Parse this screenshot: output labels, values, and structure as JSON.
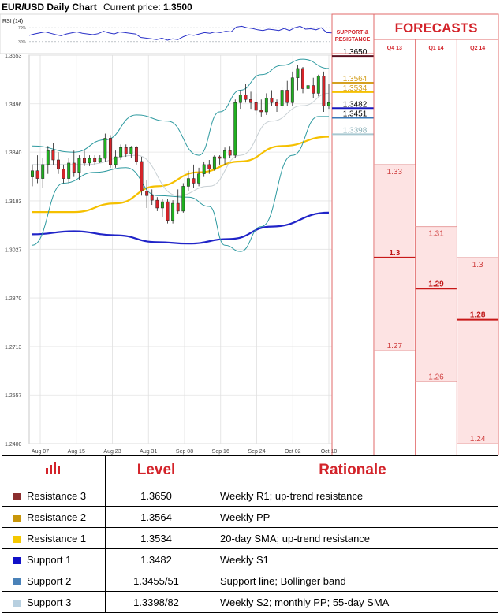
{
  "header": {
    "title": "EUR/USD Daily Chart",
    "price_label": "Current price:",
    "price_value": "1.3500"
  },
  "rsi_label": "RSI (14)",
  "rsi_ticks": [
    "70%",
    "30%"
  ],
  "chart_data": [
    {
      "type": "candlestick",
      "title": "EUR/USD Daily Chart",
      "y_ticks": [
        1.3653,
        1.3496,
        1.334,
        1.3183,
        1.3027,
        1.287,
        1.2713,
        1.2557,
        1.24
      ],
      "ylim": [
        1.24,
        1.3653
      ],
      "x_ticks": [
        "Aug 07",
        "Aug 15",
        "Aug 23",
        "Aug 31",
        "Sep 08",
        "Sep 16",
        "Sep 24",
        "Oct 02",
        "Oct 10"
      ],
      "candles": [
        {
          "o": 1.326,
          "h": 1.33,
          "l": 1.323,
          "c": 1.328
        },
        {
          "o": 1.328,
          "h": 1.333,
          "l": 1.324,
          "c": 1.3255
        },
        {
          "o": 1.3255,
          "h": 1.332,
          "l": 1.3225,
          "c": 1.33
        },
        {
          "o": 1.33,
          "h": 1.336,
          "l": 1.327,
          "c": 1.3345
        },
        {
          "o": 1.3345,
          "h": 1.337,
          "l": 1.33,
          "c": 1.3315
        },
        {
          "o": 1.3315,
          "h": 1.334,
          "l": 1.327,
          "c": 1.3285
        },
        {
          "o": 1.3285,
          "h": 1.33,
          "l": 1.324,
          "c": 1.3255
        },
        {
          "o": 1.3255,
          "h": 1.332,
          "l": 1.324,
          "c": 1.3305
        },
        {
          "o": 1.3305,
          "h": 1.3345,
          "l": 1.326,
          "c": 1.3275
        },
        {
          "o": 1.3275,
          "h": 1.333,
          "l": 1.325,
          "c": 1.332
        },
        {
          "o": 1.332,
          "h": 1.3345,
          "l": 1.3295,
          "c": 1.3305
        },
        {
          "o": 1.3305,
          "h": 1.333,
          "l": 1.3295,
          "c": 1.332
        },
        {
          "o": 1.332,
          "h": 1.333,
          "l": 1.33,
          "c": 1.331
        },
        {
          "o": 1.331,
          "h": 1.333,
          "l": 1.3305,
          "c": 1.332
        },
        {
          "o": 1.332,
          "h": 1.34,
          "l": 1.331,
          "c": 1.3385
        },
        {
          "o": 1.3385,
          "h": 1.3395,
          "l": 1.329,
          "c": 1.33
        },
        {
          "o": 1.33,
          "h": 1.3345,
          "l": 1.329,
          "c": 1.3325
        },
        {
          "o": 1.3325,
          "h": 1.3365,
          "l": 1.3315,
          "c": 1.3355
        },
        {
          "o": 1.3355,
          "h": 1.3365,
          "l": 1.3325,
          "c": 1.3335
        },
        {
          "o": 1.3335,
          "h": 1.336,
          "l": 1.332,
          "c": 1.3355
        },
        {
          "o": 1.3355,
          "h": 1.336,
          "l": 1.33,
          "c": 1.331
        },
        {
          "o": 1.331,
          "h": 1.3325,
          "l": 1.32,
          "c": 1.3215
        },
        {
          "o": 1.3215,
          "h": 1.325,
          "l": 1.316,
          "c": 1.32
        },
        {
          "o": 1.32,
          "h": 1.322,
          "l": 1.317,
          "c": 1.3185
        },
        {
          "o": 1.3185,
          "h": 1.3195,
          "l": 1.315,
          "c": 1.316
        },
        {
          "o": 1.316,
          "h": 1.319,
          "l": 1.313,
          "c": 1.318
        },
        {
          "o": 1.318,
          "h": 1.319,
          "l": 1.311,
          "c": 1.312
        },
        {
          "o": 1.312,
          "h": 1.3185,
          "l": 1.311,
          "c": 1.3175
        },
        {
          "o": 1.3175,
          "h": 1.322,
          "l": 1.314,
          "c": 1.315
        },
        {
          "o": 1.315,
          "h": 1.324,
          "l": 1.3145,
          "c": 1.323
        },
        {
          "o": 1.323,
          "h": 1.328,
          "l": 1.3215,
          "c": 1.3255
        },
        {
          "o": 1.3255,
          "h": 1.33,
          "l": 1.3225,
          "c": 1.324
        },
        {
          "o": 1.324,
          "h": 1.329,
          "l": 1.323,
          "c": 1.327
        },
        {
          "o": 1.327,
          "h": 1.331,
          "l": 1.326,
          "c": 1.33
        },
        {
          "o": 1.33,
          "h": 1.3315,
          "l": 1.327,
          "c": 1.3285
        },
        {
          "o": 1.3285,
          "h": 1.333,
          "l": 1.328,
          "c": 1.3325
        },
        {
          "o": 1.3325,
          "h": 1.333,
          "l": 1.33,
          "c": 1.332
        },
        {
          "o": 1.332,
          "h": 1.3355,
          "l": 1.33,
          "c": 1.3345
        },
        {
          "o": 1.3345,
          "h": 1.336,
          "l": 1.332,
          "c": 1.333
        },
        {
          "o": 1.333,
          "h": 1.351,
          "l": 1.332,
          "c": 1.35
        },
        {
          "o": 1.35,
          "h": 1.354,
          "l": 1.348,
          "c": 1.3525
        },
        {
          "o": 1.3525,
          "h": 1.356,
          "l": 1.35,
          "c": 1.351
        },
        {
          "o": 1.351,
          "h": 1.3535,
          "l": 1.348,
          "c": 1.35
        },
        {
          "o": 1.35,
          "h": 1.353,
          "l": 1.346,
          "c": 1.3475
        },
        {
          "o": 1.3475,
          "h": 1.351,
          "l": 1.3455,
          "c": 1.347
        },
        {
          "o": 1.347,
          "h": 1.353,
          "l": 1.346,
          "c": 1.3515
        },
        {
          "o": 1.3515,
          "h": 1.354,
          "l": 1.349,
          "c": 1.35
        },
        {
          "o": 1.35,
          "h": 1.351,
          "l": 1.347,
          "c": 1.349
        },
        {
          "o": 1.349,
          "h": 1.355,
          "l": 1.348,
          "c": 1.354
        },
        {
          "o": 1.354,
          "h": 1.357,
          "l": 1.349,
          "c": 1.35
        },
        {
          "o": 1.35,
          "h": 1.36,
          "l": 1.349,
          "c": 1.358
        },
        {
          "o": 1.358,
          "h": 1.362,
          "l": 1.354,
          "c": 1.361
        },
        {
          "o": 1.361,
          "h": 1.3615,
          "l": 1.353,
          "c": 1.3545
        },
        {
          "o": 1.3545,
          "h": 1.357,
          "l": 1.352,
          "c": 1.3555
        },
        {
          "o": 1.3555,
          "h": 1.358,
          "l": 1.3515,
          "c": 1.353
        },
        {
          "o": 1.353,
          "h": 1.359,
          "l": 1.352,
          "c": 1.3585
        },
        {
          "o": 1.3585,
          "h": 1.36,
          "l": 1.347,
          "c": 1.349
        },
        {
          "o": 1.349,
          "h": 1.356,
          "l": 1.348,
          "c": 1.35
        }
      ],
      "series": [
        {
          "color": "#f5c000",
          "points": [
            [
              0,
              1.3147
            ],
            [
              8,
              1.3147
            ],
            [
              16,
              1.3175
            ],
            [
              24,
              1.323
            ],
            [
              32,
              1.3275
            ],
            [
              40,
              1.331
            ],
            [
              48,
              1.336
            ],
            [
              57,
              1.339
            ]
          ]
        },
        {
          "color": "#2024c8",
          "points": [
            [
              0,
              1.3075
            ],
            [
              8,
              1.3085
            ],
            [
              16,
              1.3072
            ],
            [
              24,
              1.305
            ],
            [
              30,
              1.3045
            ],
            [
              38,
              1.306
            ],
            [
              46,
              1.31
            ],
            [
              57,
              1.3145
            ]
          ]
        },
        {
          "color": "#2e9aa0",
          "points": [
            [
              0,
              1.304
            ],
            [
              6,
              1.324
            ],
            [
              12,
              1.3275
            ],
            [
              18,
              1.329
            ],
            [
              24,
              1.32
            ],
            [
              30,
              1.3195
            ],
            [
              34,
              1.3165
            ],
            [
              37,
              1.304
            ],
            [
              40,
              1.302
            ],
            [
              44,
              1.31
            ],
            [
              50,
              1.333
            ],
            [
              55,
              1.3455
            ],
            [
              57,
              1.3455
            ]
          ]
        },
        {
          "color": "#2e9aa0",
          "points": [
            [
              0,
              1.336
            ],
            [
              8,
              1.334
            ],
            [
              14,
              1.338
            ],
            [
              20,
              1.346
            ],
            [
              26,
              1.344
            ],
            [
              32,
              1.333
            ],
            [
              36,
              1.347
            ],
            [
              40,
              1.354
            ],
            [
              44,
              1.359
            ],
            [
              48,
              1.362
            ],
            [
              52,
              1.364
            ],
            [
              57,
              1.361
            ]
          ]
        },
        {
          "color": "#c8d0d4",
          "points": [
            [
              0,
              1.33
            ],
            [
              10,
              1.33
            ],
            [
              20,
              1.333
            ],
            [
              28,
              1.32
            ],
            [
              34,
              1.323
            ],
            [
              40,
              1.333
            ],
            [
              46,
              1.344
            ],
            [
              52,
              1.349
            ],
            [
              57,
              1.353
            ]
          ]
        }
      ]
    },
    {
      "type": "line",
      "title": "RSI (14)",
      "ylim": [
        0,
        100
      ],
      "values": [
        48,
        52,
        55,
        58,
        54,
        50,
        47,
        52,
        55,
        58,
        54,
        52,
        50,
        53,
        60,
        55,
        52,
        58,
        56,
        54,
        52,
        42,
        40,
        38,
        36,
        40,
        34,
        38,
        36,
        44,
        50,
        48,
        52,
        56,
        54,
        58,
        56,
        60,
        58,
        72,
        74,
        70,
        68,
        64,
        62,
        66,
        64,
        62,
        68,
        62,
        70,
        74,
        66,
        67,
        64,
        70,
        56,
        55
      ]
    }
  ],
  "levels": [
    {
      "label": "1.3650",
      "color": "#5a1020",
      "text_color": "#000000",
      "value": 1.365
    },
    {
      "label": "1.3564",
      "color": "#d4a020",
      "text_color": "#d4a020",
      "value": 1.3564
    },
    {
      "label": "1.3534",
      "color": "#f5c000",
      "text_color": "#d4a020",
      "value": 1.3534
    },
    {
      "label": "1.3482",
      "color": "#1818c0",
      "text_color": "#000000",
      "value": 1.3482
    },
    {
      "label": "1.3451",
      "color": "#3878b8",
      "text_color": "#000000",
      "value": 1.3451
    },
    {
      "label": "1.3398",
      "color": "#a8c8d0",
      "text_color": "#8ab0b8",
      "value": 1.3398
    }
  ],
  "sr_header": "SUPPORT & RESISTANCE",
  "forecasts": {
    "title": "FORECASTS",
    "columns": [
      {
        "label": "Q4 13",
        "low": 1.27,
        "mid": 1.3,
        "high": 1.33,
        "low_label": "1.27",
        "mid_label": "1.3",
        "high_label": "1.33"
      },
      {
        "label": "Q1 14",
        "low": 1.26,
        "mid": 1.29,
        "high": 1.31,
        "low_label": "1.26",
        "mid_label": "1.29",
        "high_label": "1.31"
      },
      {
        "label": "Q2 14",
        "low": 1.24,
        "mid": 1.28,
        "high": 1.3,
        "low_label": "1.24",
        "mid_label": "1.28",
        "high_label": "1.3"
      }
    ]
  },
  "table": {
    "col_level": "Level",
    "col_rationale": "Rationale",
    "rows": [
      {
        "name": "Resistance 3",
        "level": "1.3650",
        "rationale": "Weekly R1; up-trend resistance",
        "color": "#8b2e2e"
      },
      {
        "name": "Resistance 2",
        "level": "1.3564",
        "rationale": "Weekly PP",
        "color": "#c8960a"
      },
      {
        "name": "Resistance 1",
        "level": "1.3534",
        "rationale": "20-day SMA; up-trend resistance",
        "color": "#f5c800"
      },
      {
        "name": "Support 1",
        "level": "1.3482",
        "rationale": "Weekly S1",
        "color": "#1010c8"
      },
      {
        "name": "Support 2",
        "level": "1.3455/51",
        "rationale": "Support line; Bollinger band",
        "color": "#4a82b8"
      },
      {
        "name": "Support 3",
        "level": "1.3398/82",
        "rationale": "Weekly S2; monthly PP; 55-day SMA",
        "color": "#b8d0e0"
      }
    ]
  }
}
